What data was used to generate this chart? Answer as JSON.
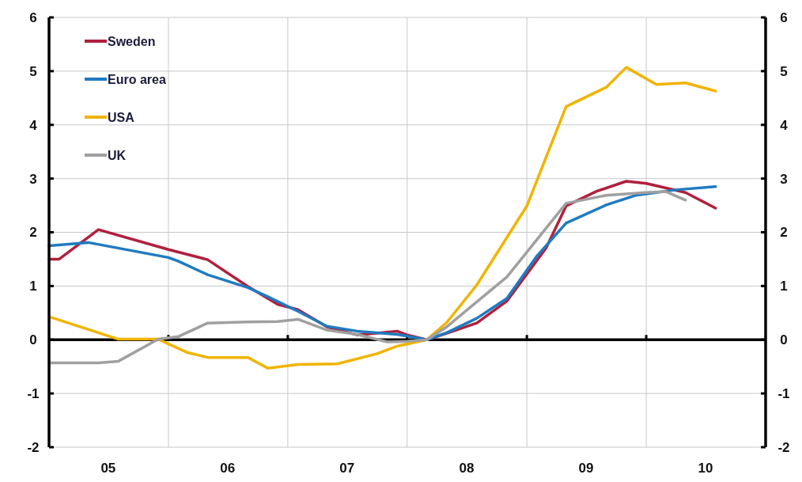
{
  "chart_data": {
    "type": "line",
    "xlim": [
      "2005-01",
      "2011-01"
    ],
    "xticks": [
      {
        "value": "2005-07",
        "label": "05"
      },
      {
        "value": "2006-01",
        "label": null
      },
      {
        "value": "2006-07",
        "label": "06"
      },
      {
        "value": "2007-01",
        "label": null
      },
      {
        "value": "2007-07",
        "label": "07"
      },
      {
        "value": "2008-01",
        "label": null
      },
      {
        "value": "2008-07",
        "label": "08"
      },
      {
        "value": "2009-01",
        "label": null
      },
      {
        "value": "2009-07",
        "label": "09"
      },
      {
        "value": "2010-01",
        "label": null
      },
      {
        "value": "2010-07",
        "label": "10"
      }
    ],
    "ylim": [
      -2,
      6
    ],
    "yticks": [
      -2,
      -1,
      0,
      1,
      2,
      3,
      4,
      5,
      6
    ],
    "y2lim": [
      -2,
      6
    ],
    "y2ticks": [
      -2,
      -1,
      0,
      1,
      2,
      3,
      4,
      5,
      6
    ],
    "grid": true,
    "legend": "top left",
    "line_style": "solid",
    "ref_lines": [
      {
        "axis": "y",
        "value": 0,
        "color": "#000000"
      }
    ],
    "series": [
      {
        "name": "Sweden",
        "color": "#b0203e",
        "x": [
          "2005-01",
          "2005-02",
          "2005-06",
          "2006-01",
          "2006-05",
          "2006-09",
          "2006-12",
          "2007-02",
          "2007-05",
          "2007-08",
          "2007-12",
          "2008-01",
          "2008-03",
          "2008-05",
          "2008-08",
          "2008-11",
          "2009-03",
          "2009-05",
          "2009-08",
          "2009-11",
          "2010-01",
          "2010-05",
          "2010-08"
        ],
        "values": [
          1.5,
          1.5,
          2.05,
          1.68,
          1.49,
          0.99,
          0.66,
          0.56,
          0.24,
          0.09,
          0.16,
          0.09,
          0,
          0.12,
          0.31,
          0.72,
          1.71,
          2.49,
          2.76,
          2.95,
          2.91,
          2.74,
          2.45
        ]
      },
      {
        "name": "Euro area",
        "color": "#1f7bc1",
        "x": [
          "2005-01",
          "2005-05",
          "2006-01",
          "2006-02",
          "2006-05",
          "2006-09",
          "2006-11",
          "2007-02",
          "2007-05",
          "2007-08",
          "2007-12",
          "2008-03",
          "2008-05",
          "2008-08",
          "2008-11",
          "2009-02",
          "2009-05",
          "2009-09",
          "2009-12",
          "2010-04",
          "2010-08"
        ],
        "values": [
          1.75,
          1.81,
          1.53,
          1.46,
          1.21,
          0.97,
          0.8,
          0.53,
          0.25,
          0.16,
          0.1,
          0,
          0.13,
          0.4,
          0.77,
          1.56,
          2.17,
          2.51,
          2.69,
          2.79,
          2.85
        ]
      },
      {
        "name": "USA",
        "color": "#f0b400",
        "x": [
          "2005-01",
          "2005-06",
          "2005-08",
          "2005-12",
          "2006-03",
          "2006-05",
          "2006-09",
          "2006-11",
          "2007-02",
          "2007-06",
          "2007-10",
          "2007-12",
          "2008-03",
          "2008-05",
          "2008-08",
          "2009-01",
          "2009-05",
          "2009-09",
          "2009-11",
          "2010-02",
          "2010-05",
          "2010-08"
        ],
        "values": [
          0.43,
          0.13,
          0.01,
          0.01,
          -0.24,
          -0.33,
          -0.33,
          -0.53,
          -0.46,
          -0.45,
          -0.26,
          -0.12,
          0,
          0.32,
          1.02,
          2.49,
          4.34,
          4.7,
          5.07,
          4.75,
          4.78,
          4.63
        ]
      },
      {
        "name": "UK",
        "color": "#a0a0a0",
        "x": [
          "2005-01",
          "2005-06",
          "2005-08",
          "2005-12",
          "2006-02",
          "2006-05",
          "2006-09",
          "2006-12",
          "2007-02",
          "2007-05",
          "2007-08",
          "2007-11",
          "2008-01",
          "2008-03",
          "2008-05",
          "2008-11",
          "2009-05",
          "2009-09",
          "2010-01",
          "2010-03",
          "2010-05"
        ],
        "values": [
          -0.43,
          -0.43,
          -0.4,
          0.01,
          0.06,
          0.31,
          0.33,
          0.34,
          0.38,
          0.18,
          0.1,
          -0.04,
          -0.03,
          0,
          0.24,
          1.17,
          2.54,
          2.69,
          2.74,
          2.76,
          2.6
        ]
      }
    ]
  }
}
